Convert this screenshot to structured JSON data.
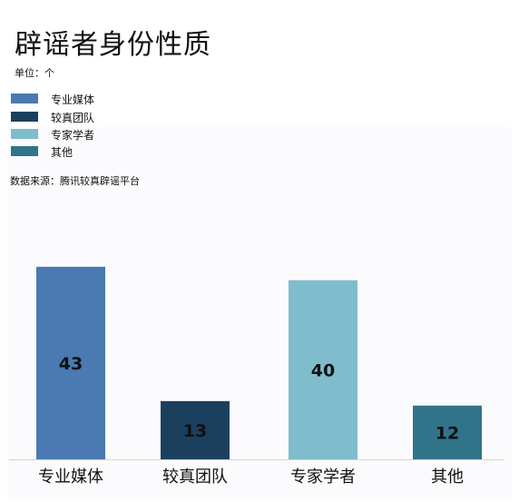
{
  "title": "辟谣者身份性质",
  "unit": "单位：个",
  "source": "数据来源：腾讯较真辟谣平台",
  "legend": [
    {
      "label": "专业媒体",
      "color": "#4a7ab1"
    },
    {
      "label": "较真团队",
      "color": "#1b405e"
    },
    {
      "label": "专家学者",
      "color": "#7fbccc"
    },
    {
      "label": "其他",
      "color": "#31748a"
    }
  ],
  "chart_data": {
    "type": "bar",
    "title": "辟谣者身份性质",
    "categories": [
      "专业媒体",
      "较真团队",
      "专家学者",
      "其他"
    ],
    "values": [
      43,
      13,
      40,
      12
    ],
    "colors": [
      "#4a7ab1",
      "#1b405e",
      "#7fbccc",
      "#31748a"
    ],
    "ylim": [
      0,
      45
    ],
    "grid": false,
    "legend_position": "top-left"
  }
}
